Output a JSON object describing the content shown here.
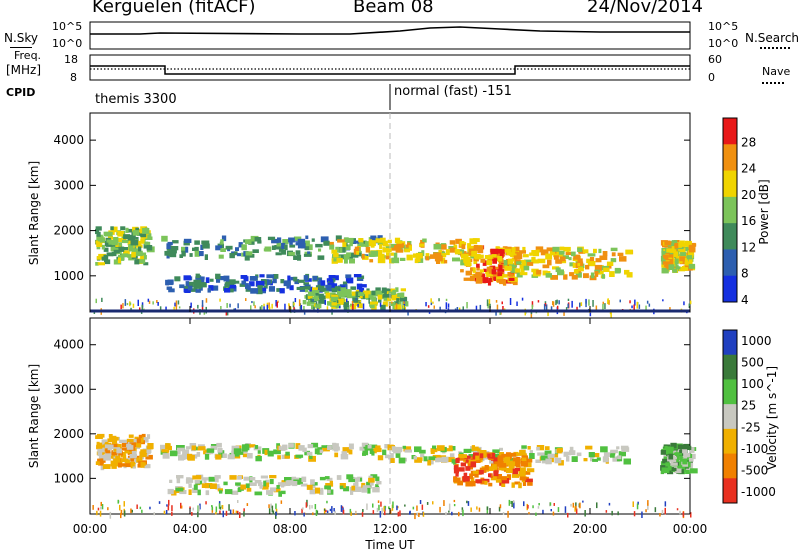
{
  "header": {
    "station": "Kerguelen (fitACF)",
    "beam": "Beam 08",
    "date": "24/Nov/2014"
  },
  "sky_panel": {
    "left_label": "N.Sky",
    "left_ticks": [
      "10^5",
      "10^0"
    ],
    "right_ticks": [
      "10^5",
      "10^0"
    ],
    "right_label": "N.Search"
  },
  "freq_panel": {
    "left_label_1": "Freq.",
    "left_label_2": "[MHz]",
    "left_ticks": [
      "18",
      "8"
    ],
    "right_ticks": [
      "60",
      "0"
    ],
    "right_label": "Nave"
  },
  "cpid_panel": {
    "label": "CPID",
    "program_1": "themis 3300",
    "program_2": "normal (fast) -151"
  },
  "chart_data": [
    {
      "type": "heatmap",
      "quantity": "Power",
      "ylabel": "Slant Range [km]",
      "yticks": [
        "1000",
        "2000",
        "3000",
        "4000"
      ],
      "ylim": [
        200,
        4600
      ],
      "xlim_hours": [
        0,
        24
      ],
      "colorbar_label": "Power [dB]",
      "colorbar_ticks": [
        "4",
        "8",
        "12",
        "16",
        "20",
        "24",
        "28"
      ],
      "colorbar_colors": [
        "#1530e0",
        "#2d5fb0",
        "#3f8a5a",
        "#7cc45a",
        "#f0d400",
        "#f09010",
        "#e81818"
      ],
      "echo_bands": [
        {
          "t0": 0.2,
          "t1": 2.3,
          "r0": 1300,
          "r1": 2100,
          "level": 3
        },
        {
          "t0": 2.8,
          "t1": 11.5,
          "r0": 1450,
          "r1": 1900,
          "level": 2
        },
        {
          "t0": 3.0,
          "t1": 11.0,
          "r0": 700,
          "r1": 1050,
          "level": 1
        },
        {
          "t0": 8.5,
          "t1": 12.5,
          "r0": 350,
          "r1": 750,
          "level": 3
        },
        {
          "t0": 9.5,
          "t1": 15.5,
          "r0": 1350,
          "r1": 1850,
          "level": 4
        },
        {
          "t0": 14.8,
          "t1": 17.0,
          "r0": 900,
          "r1": 1700,
          "level": 5
        },
        {
          "t0": 16.5,
          "t1": 21.5,
          "r0": 1000,
          "r1": 1650,
          "level": 4
        },
        {
          "t0": 22.8,
          "t1": 24.0,
          "r0": 1150,
          "r1": 1800,
          "level": 4
        }
      ]
    },
    {
      "type": "heatmap",
      "quantity": "Velocity",
      "ylabel": "Slant Range [km]",
      "yticks": [
        "1000",
        "2000",
        "3000",
        "4000"
      ],
      "ylim": [
        200,
        4600
      ],
      "xlim_hours": [
        0,
        24
      ],
      "colorbar_label": "Velocity [m s^-1]",
      "colorbar_ticks": [
        "1000",
        "500",
        "100",
        "25",
        "-25",
        "-100",
        "-500",
        "-1000"
      ],
      "colorbar_colors": [
        "#2040c0",
        "#3a7a3a",
        "#50c040",
        "#c8c8c0",
        "#f0b000",
        "#f08000",
        "#e83020"
      ],
      "echo_bands": [
        {
          "t0": 0.2,
          "t1": 2.3,
          "r0": 1300,
          "r1": 2000,
          "level": 4
        },
        {
          "t0": 2.8,
          "t1": 12.0,
          "r0": 1500,
          "r1": 1800,
          "level": 3
        },
        {
          "t0": 3.0,
          "t1": 11.5,
          "r0": 700,
          "r1": 1100,
          "level": 3
        },
        {
          "t0": 12.0,
          "t1": 21.5,
          "r0": 1400,
          "r1": 1750,
          "level": 3
        },
        {
          "t0": 14.5,
          "t1": 17.5,
          "r0": 900,
          "r1": 1600,
          "level": 5
        },
        {
          "t0": 22.8,
          "t1": 24.0,
          "r0": 1200,
          "r1": 1800,
          "level": 2
        }
      ]
    }
  ],
  "xaxis": {
    "ticks": [
      "00:00",
      "04:00",
      "08:00",
      "12:00",
      "16:00",
      "20:00",
      "00:00"
    ],
    "label": "Time UT"
  }
}
